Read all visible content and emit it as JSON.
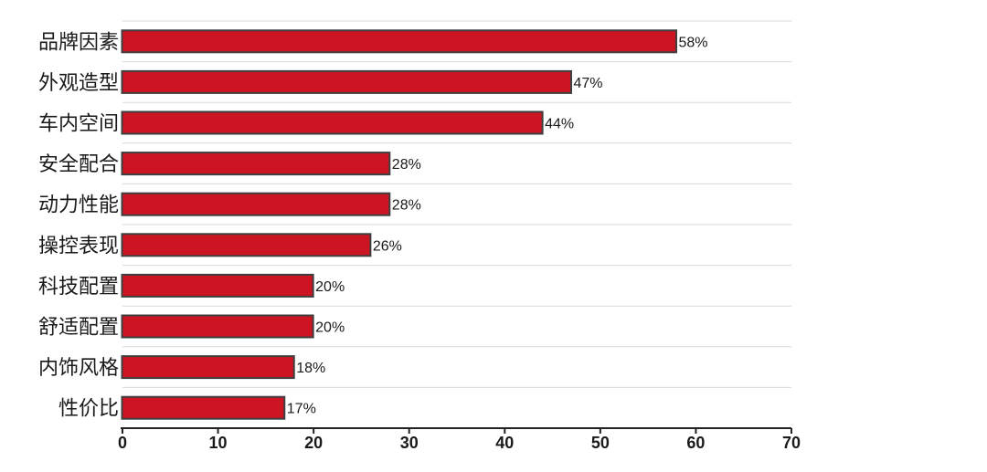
{
  "chart_data": {
    "type": "bar",
    "orientation": "horizontal",
    "categories": [
      "品牌因素",
      "外观造型",
      "车内空间",
      "安全配合",
      "动力性能",
      "操控表现",
      "科技配置",
      "舒适配置",
      "内饰风格",
      "性价比"
    ],
    "values": [
      58,
      47,
      44,
      28,
      28,
      26,
      20,
      20,
      18,
      17
    ],
    "data_labels": [
      "58%",
      "47%",
      "44%",
      "28%",
      "28%",
      "26%",
      "20%",
      "20%",
      "18%",
      "17%"
    ],
    "xlim": [
      0,
      70
    ],
    "xticks": [
      0,
      10,
      20,
      30,
      40,
      50,
      60,
      70
    ],
    "xtick_labels": [
      "0",
      "10",
      "20",
      "30",
      "40",
      "50",
      "60",
      "70"
    ],
    "grid": "horizontal",
    "legend": "none",
    "colors": {
      "bar_fill": "#cc1422",
      "bar_stroke": "#3f3f3f",
      "grid": "#d9d9d9",
      "axis": "#222222",
      "text": "#1a1a1a"
    }
  }
}
